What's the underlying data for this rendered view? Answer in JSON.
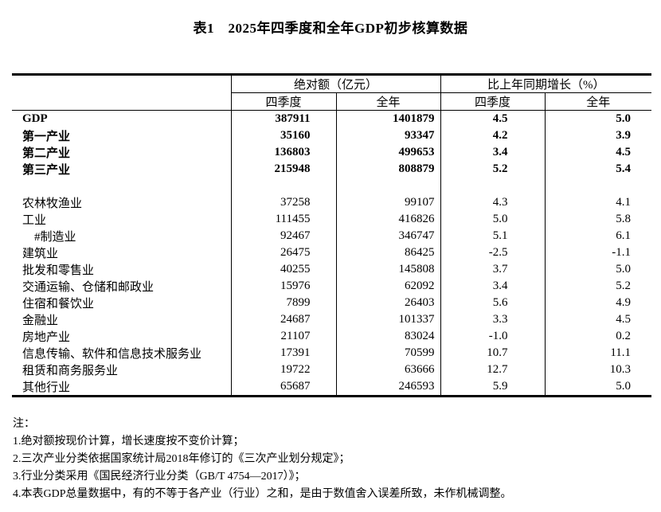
{
  "title": "表1　2025年四季度和全年GDP初步核算数据",
  "header": {
    "group_absolute": "绝对额（亿元）",
    "group_growth": "比上年同期增长（%）",
    "sub_quarter": "四季度",
    "sub_year": "全年"
  },
  "rows": [
    {
      "label": "GDP",
      "bold": true,
      "values": [
        "387911",
        "1401879",
        "4.5",
        "5.0"
      ]
    },
    {
      "label": "第一产业",
      "bold": true,
      "values": [
        "35160",
        "93347",
        "4.2",
        "3.9"
      ]
    },
    {
      "label": "第二产业",
      "bold": true,
      "values": [
        "136803",
        "499653",
        "3.4",
        "4.5"
      ]
    },
    {
      "label": "第三产业",
      "bold": true,
      "values": [
        "215948",
        "808879",
        "5.2",
        "5.4"
      ]
    },
    {
      "spacer": true
    },
    {
      "label": "农林牧渔业",
      "values": [
        "37258",
        "99107",
        "4.3",
        "4.1"
      ]
    },
    {
      "label": "工业",
      "values": [
        "111455",
        "416826",
        "5.0",
        "5.8"
      ]
    },
    {
      "label": "#制造业",
      "indent": true,
      "values": [
        "92467",
        "346747",
        "5.1",
        "6.1"
      ]
    },
    {
      "label": "建筑业",
      "values": [
        "26475",
        "86425",
        "-2.5",
        "-1.1"
      ]
    },
    {
      "label": "批发和零售业",
      "values": [
        "40255",
        "145808",
        "3.7",
        "5.0"
      ]
    },
    {
      "label": "交通运输、仓储和邮政业",
      "values": [
        "15976",
        "62092",
        "3.4",
        "5.2"
      ]
    },
    {
      "label": "住宿和餐饮业",
      "values": [
        "7899",
        "26403",
        "5.6",
        "4.9"
      ]
    },
    {
      "label": "金融业",
      "values": [
        "24687",
        "101337",
        "3.3",
        "4.5"
      ]
    },
    {
      "label": "房地产业",
      "values": [
        "21107",
        "83024",
        "-1.0",
        "0.2"
      ]
    },
    {
      "label": "信息传输、软件和信息技术服务业",
      "values": [
        "17391",
        "70599",
        "10.7",
        "11.1"
      ]
    },
    {
      "label": "租赁和商务服务业",
      "values": [
        "19722",
        "63666",
        "12.7",
        "10.3"
      ]
    },
    {
      "label": "其他行业",
      "values": [
        "65687",
        "246593",
        "5.9",
        "5.0"
      ]
    }
  ],
  "notes": {
    "label": "注：",
    "items": [
      "1.绝对额按现价计算，增长速度按不变价计算；",
      "2.三次产业分类依据国家统计局2018年修订的《三次产业划分规定》；",
      "3.行业分类采用《国民经济行业分类（GB/T 4754—2017）》；",
      "4.本表GDP总量数据中，有的不等于各产业（行业）之和，是由于数值舍入误差所致，未作机械调整。"
    ]
  }
}
